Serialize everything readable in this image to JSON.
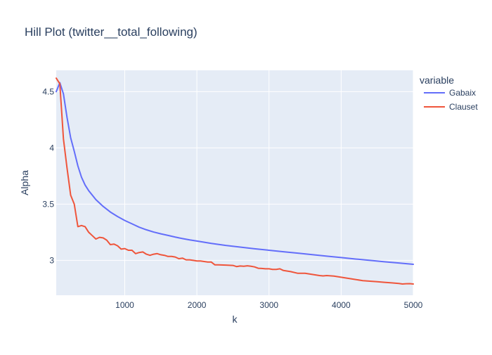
{
  "chart_data": {
    "type": "line",
    "title": "Hill Plot (twitter__total_following)",
    "xlabel": "k",
    "ylabel": "Alpha",
    "xlim": [
      50,
      5000
    ],
    "ylim": [
      2.69,
      4.69
    ],
    "xticks": [
      1000,
      2000,
      3000,
      4000,
      5000
    ],
    "xtick_labels": [
      "1000",
      "2000",
      "3000",
      "4000",
      "5000"
    ],
    "yticks": [
      3,
      3.5,
      4,
      4.5
    ],
    "ytick_labels": [
      "3",
      "3.5",
      "4",
      "4.5"
    ],
    "grid": true,
    "legend_title": "variable",
    "legend_position": "top-right",
    "series": [
      {
        "name": "Gabaix",
        "color": "#636efa",
        "x": [
          50,
          100,
          150,
          200,
          250,
          300,
          350,
          400,
          450,
          500,
          600,
          700,
          800,
          900,
          1000,
          1100,
          1200,
          1300,
          1400,
          1500,
          1600,
          1700,
          1800,
          1900,
          2000,
          2200,
          2400,
          2600,
          2800,
          3000,
          3200,
          3400,
          3600,
          3800,
          4000,
          4200,
          4400,
          4600,
          4800,
          5000
        ],
        "y": [
          4.5,
          4.58,
          4.48,
          4.27,
          4.09,
          3.97,
          3.84,
          3.74,
          3.67,
          3.62,
          3.54,
          3.48,
          3.43,
          3.39,
          3.355,
          3.325,
          3.295,
          3.272,
          3.252,
          3.236,
          3.222,
          3.207,
          3.194,
          3.182,
          3.172,
          3.151,
          3.133,
          3.118,
          3.103,
          3.09,
          3.077,
          3.064,
          3.051,
          3.038,
          3.025,
          3.012,
          3.0,
          2.988,
          2.977,
          2.965
        ]
      },
      {
        "name": "Clauset",
        "color": "#ef553b",
        "x": [
          50,
          100,
          150,
          200,
          250,
          300,
          350,
          400,
          450,
          500,
          550,
          600,
          650,
          700,
          750,
          800,
          850,
          900,
          950,
          1000,
          1050,
          1100,
          1150,
          1200,
          1250,
          1300,
          1350,
          1400,
          1450,
          1500,
          1550,
          1600,
          1650,
          1700,
          1750,
          1800,
          1850,
          1900,
          1950,
          2000,
          2050,
          2100,
          2150,
          2200,
          2250,
          2300,
          2400,
          2500,
          2550,
          2600,
          2650,
          2700,
          2750,
          2800,
          2850,
          2900,
          2950,
          3000,
          3050,
          3100,
          3150,
          3200,
          3300,
          3400,
          3500,
          3600,
          3700,
          3750,
          3800,
          3900,
          4000,
          4100,
          4200,
          4300,
          4400,
          4500,
          4600,
          4700,
          4800,
          4850,
          4900,
          4950,
          5000
        ],
        "y": [
          4.62,
          4.57,
          4.08,
          3.82,
          3.58,
          3.5,
          3.3,
          3.31,
          3.3,
          3.25,
          3.22,
          3.19,
          3.205,
          3.2,
          3.18,
          3.14,
          3.145,
          3.13,
          3.1,
          3.105,
          3.09,
          3.09,
          3.06,
          3.07,
          3.075,
          3.055,
          3.045,
          3.055,
          3.06,
          3.05,
          3.045,
          3.035,
          3.035,
          3.03,
          3.015,
          3.02,
          3.005,
          3.005,
          3.0,
          2.995,
          2.995,
          2.99,
          2.985,
          2.985,
          2.96,
          2.96,
          2.958,
          2.955,
          2.945,
          2.95,
          2.948,
          2.952,
          2.948,
          2.942,
          2.93,
          2.928,
          2.925,
          2.925,
          2.92,
          2.92,
          2.925,
          2.91,
          2.9,
          2.885,
          2.885,
          2.875,
          2.865,
          2.862,
          2.865,
          2.86,
          2.85,
          2.84,
          2.83,
          2.82,
          2.815,
          2.81,
          2.805,
          2.8,
          2.795,
          2.79,
          2.792,
          2.793,
          2.79
        ]
      }
    ]
  }
}
